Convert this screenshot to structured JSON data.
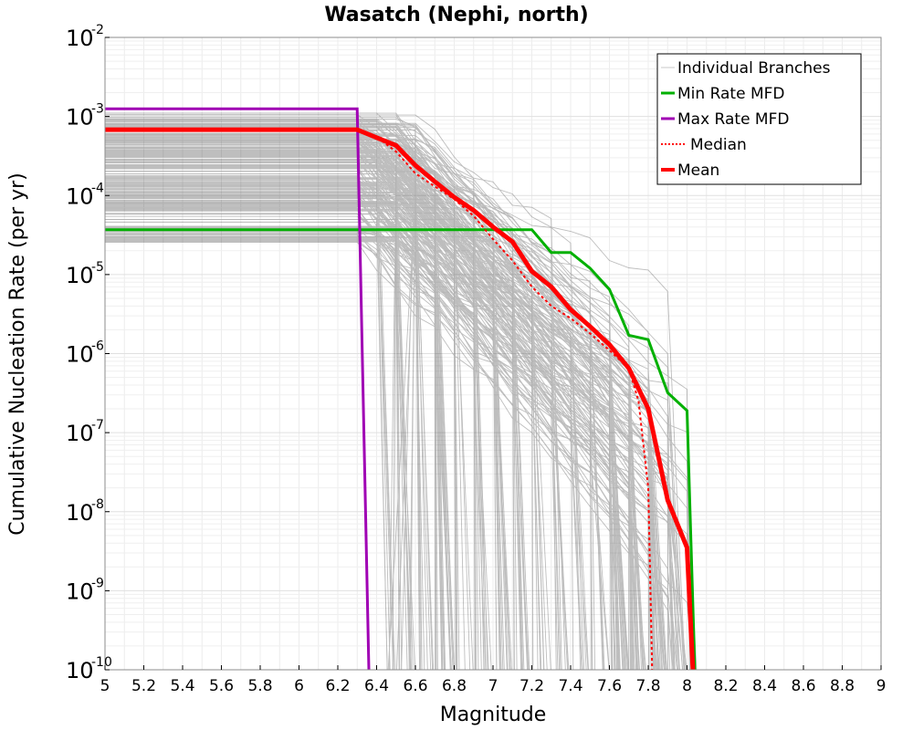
{
  "chart_data": {
    "type": "line",
    "title": "Wasatch (Nephi, north)",
    "xlabel": "Magnitude",
    "ylabel": "Cumulative Nucleation Rate (per yr)",
    "xlim": [
      5,
      9
    ],
    "ylim_log10": [
      -10,
      -2
    ],
    "x_ticks": [
      "5",
      "5.2",
      "5.4",
      "5.6",
      "5.8",
      "6",
      "6.2",
      "6.4",
      "6.6",
      "6.8",
      "7",
      "7.2",
      "7.4",
      "7.6",
      "7.8",
      "8",
      "8.2",
      "8.4",
      "8.6",
      "8.8",
      "9"
    ],
    "y_ticks": [
      {
        "base": "10",
        "exp": "-2",
        "log10": -2
      },
      {
        "base": "10",
        "exp": "-3",
        "log10": -3
      },
      {
        "base": "10",
        "exp": "-4",
        "log10": -4
      },
      {
        "base": "10",
        "exp": "-5",
        "log10": -5
      },
      {
        "base": "10",
        "exp": "-6",
        "log10": -6
      },
      {
        "base": "10",
        "exp": "-7",
        "log10": -7
      },
      {
        "base": "10",
        "exp": "-8",
        "log10": -8
      },
      {
        "base": "10",
        "exp": "-9",
        "log10": -9
      },
      {
        "base": "10",
        "exp": "-10",
        "log10": -10
      }
    ],
    "legend_position": "top-right",
    "legend": [
      {
        "label": "Individual Branches",
        "color": "#c8c8c8",
        "style": "thin"
      },
      {
        "label": "Min Rate MFD",
        "color": "#00b000",
        "style": "solid"
      },
      {
        "label": "Max Rate MFD",
        "color": "#a000b4",
        "style": "solid"
      },
      {
        "label": "Median",
        "color": "#ff0000",
        "style": "dotted"
      },
      {
        "label": "Mean",
        "color": "#ff0000",
        "style": "thick"
      }
    ],
    "series": [
      {
        "name": "Min Rate MFD",
        "color": "#00b000",
        "width": 3,
        "dash": "",
        "points": [
          [
            5.0,
            3.7e-05
          ],
          [
            7.2,
            3.7e-05
          ],
          [
            7.3,
            1.9e-05
          ],
          [
            7.4,
            1.9e-05
          ],
          [
            7.5,
            1.2e-05
          ],
          [
            7.6,
            6.5e-06
          ],
          [
            7.7,
            1.7e-06
          ],
          [
            7.8,
            1.5e-06
          ],
          [
            7.9,
            3.2e-07
          ],
          [
            8.0,
            1.9e-07
          ],
          [
            8.04,
            1e-10
          ]
        ]
      },
      {
        "name": "Max Rate MFD",
        "color": "#a000b4",
        "width": 3,
        "dash": "",
        "points": [
          [
            5.0,
            0.00125
          ],
          [
            6.3,
            0.00125
          ],
          [
            6.36,
            1e-10
          ]
        ]
      },
      {
        "name": "Median",
        "color": "#ff0000",
        "width": 2,
        "dash": "3,3",
        "points": [
          [
            5.0,
            0.00068
          ],
          [
            6.3,
            0.00068
          ],
          [
            6.4,
            0.00055
          ],
          [
            6.5,
            0.00036
          ],
          [
            6.6,
            0.00019
          ],
          [
            6.7,
            0.00013
          ],
          [
            6.8,
            9e-05
          ],
          [
            6.9,
            5.5e-05
          ],
          [
            7.0,
            2.8e-05
          ],
          [
            7.1,
            1.5e-05
          ],
          [
            7.2,
            7e-06
          ],
          [
            7.3,
            4e-06
          ],
          [
            7.4,
            2.8e-06
          ],
          [
            7.5,
            1.8e-06
          ],
          [
            7.6,
            1.1e-06
          ],
          [
            7.7,
            6.5e-07
          ],
          [
            7.75,
            2.5e-07
          ],
          [
            7.8,
            2e-08
          ],
          [
            7.82,
            1e-10
          ]
        ]
      },
      {
        "name": "Mean",
        "color": "#ff0000",
        "width": 5,
        "dash": "",
        "points": [
          [
            5.0,
            0.00068
          ],
          [
            6.3,
            0.00068
          ],
          [
            6.4,
            0.00054
          ],
          [
            6.5,
            0.00043
          ],
          [
            6.6,
            0.00024
          ],
          [
            6.7,
            0.00015
          ],
          [
            6.8,
            9.5e-05
          ],
          [
            6.9,
            6.5e-05
          ],
          [
            7.0,
            4e-05
          ],
          [
            7.1,
            2.6e-05
          ],
          [
            7.2,
            1.1e-05
          ],
          [
            7.3,
            7e-06
          ],
          [
            7.4,
            3.6e-06
          ],
          [
            7.5,
            2.2e-06
          ],
          [
            7.6,
            1.3e-06
          ],
          [
            7.7,
            6.5e-07
          ],
          [
            7.8,
            2e-07
          ],
          [
            7.9,
            1.4e-08
          ],
          [
            8.0,
            3.5e-09
          ],
          [
            8.03,
            1e-10
          ]
        ]
      }
    ]
  }
}
